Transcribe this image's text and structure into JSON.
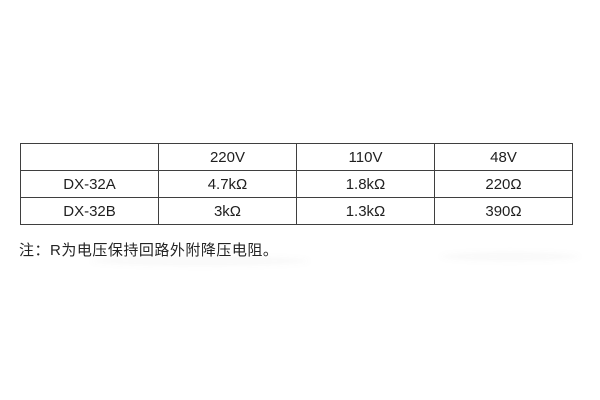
{
  "table": {
    "headers": [
      "",
      "220V",
      "110V",
      "48V"
    ],
    "rows": [
      {
        "model": "DX-32A",
        "values": [
          "4.7kΩ",
          "1.8kΩ",
          "220Ω"
        ]
      },
      {
        "model": "DX-32B",
        "values": [
          "3kΩ",
          "1.3kΩ",
          "390Ω"
        ]
      }
    ]
  },
  "note": "注：R为电压保持回路外附降压电阻。"
}
